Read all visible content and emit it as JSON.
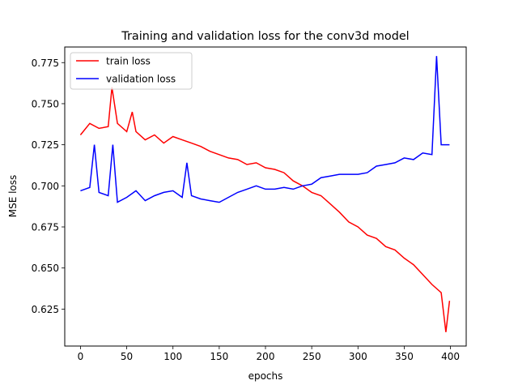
{
  "chart_data": {
    "type": "line",
    "title": "Training and validation loss for the conv3d model",
    "xlabel": "epochs",
    "ylabel": "MSE loss",
    "xlim": [
      -17,
      417
    ],
    "ylim": [
      0.6025,
      0.7845
    ],
    "xticks": [
      0,
      50,
      100,
      150,
      200,
      250,
      300,
      350,
      400
    ],
    "yticks": [
      0.625,
      0.65,
      0.675,
      0.7,
      0.725,
      0.75,
      0.775
    ],
    "grid": false,
    "legend_position": "top-left",
    "series": [
      {
        "name": "train loss",
        "color": "#ff0000",
        "x": [
          0,
          10,
          20,
          30,
          34,
          40,
          50,
          56,
          60,
          70,
          80,
          90,
          100,
          110,
          120,
          130,
          140,
          150,
          160,
          170,
          180,
          190,
          200,
          210,
          220,
          230,
          240,
          250,
          260,
          270,
          280,
          290,
          300,
          310,
          320,
          330,
          340,
          350,
          360,
          370,
          380,
          390,
          395,
          399
        ],
        "y": [
          0.731,
          0.738,
          0.735,
          0.736,
          0.76,
          0.738,
          0.733,
          0.745,
          0.733,
          0.728,
          0.731,
          0.726,
          0.73,
          0.728,
          0.726,
          0.724,
          0.721,
          0.719,
          0.717,
          0.716,
          0.713,
          0.714,
          0.711,
          0.71,
          0.708,
          0.703,
          0.7,
          0.696,
          0.694,
          0.689,
          0.684,
          0.678,
          0.675,
          0.67,
          0.668,
          0.663,
          0.661,
          0.656,
          0.652,
          0.646,
          0.64,
          0.635,
          0.611,
          0.63
        ]
      },
      {
        "name": "validation loss",
        "color": "#0000ff",
        "x": [
          0,
          10,
          15,
          20,
          30,
          35,
          40,
          50,
          60,
          70,
          80,
          90,
          100,
          110,
          115,
          120,
          130,
          140,
          150,
          160,
          170,
          180,
          190,
          200,
          210,
          220,
          230,
          240,
          250,
          260,
          270,
          280,
          290,
          300,
          310,
          320,
          330,
          340,
          350,
          360,
          370,
          380,
          385,
          390,
          399
        ],
        "y": [
          0.697,
          0.699,
          0.725,
          0.696,
          0.694,
          0.725,
          0.69,
          0.693,
          0.697,
          0.691,
          0.694,
          0.696,
          0.697,
          0.693,
          0.714,
          0.694,
          0.692,
          0.691,
          0.69,
          0.693,
          0.696,
          0.698,
          0.7,
          0.698,
          0.698,
          0.699,
          0.698,
          0.7,
          0.701,
          0.705,
          0.706,
          0.707,
          0.707,
          0.707,
          0.708,
          0.712,
          0.713,
          0.714,
          0.717,
          0.716,
          0.72,
          0.719,
          0.779,
          0.725,
          0.725
        ]
      }
    ]
  }
}
